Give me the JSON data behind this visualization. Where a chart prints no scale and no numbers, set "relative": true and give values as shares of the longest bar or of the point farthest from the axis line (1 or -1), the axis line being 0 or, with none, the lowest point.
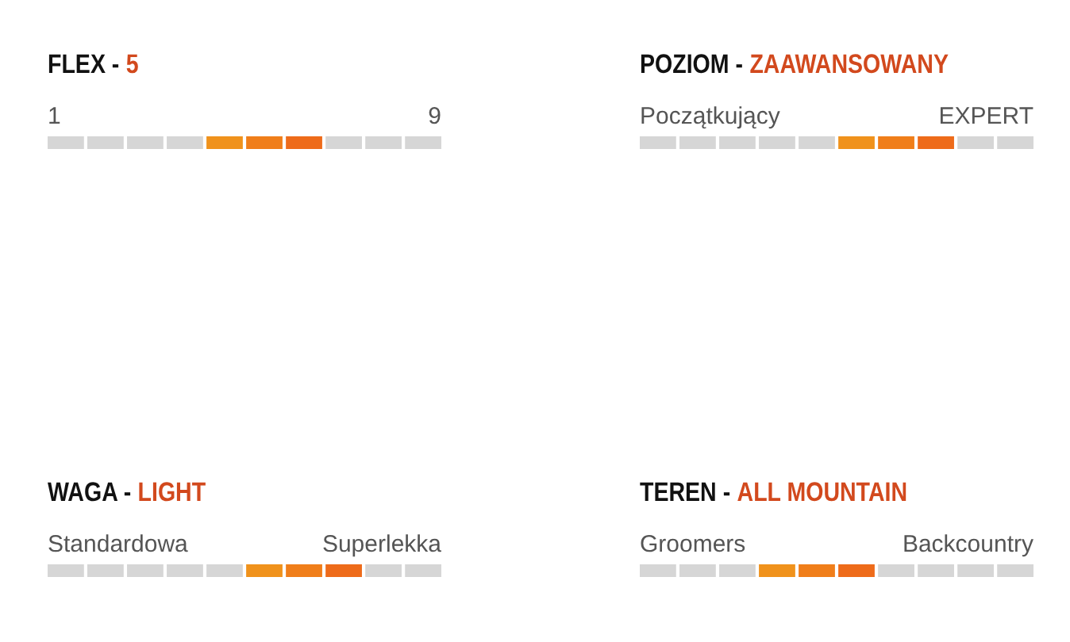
{
  "chart_data": [
    {
      "type": "bar",
      "title": "FLEX -",
      "subtitle": "5",
      "annotations": [
        "1",
        "9"
      ],
      "relative": true,
      "categories": [
        null,
        null,
        null,
        null,
        null,
        null,
        null,
        null,
        null,
        null
      ],
      "values": [
        1,
        1,
        1,
        1,
        1,
        1,
        1,
        1,
        1,
        1
      ],
      "colors": [
        "#d6d6d6",
        "#d6d6d6",
        "#d6d6d6",
        "#d6d6d6",
        "#f0921c",
        "#f07e1a",
        "#ee6b1a",
        "#d6d6d6",
        "#d6d6d6",
        "#d6d6d6"
      ]
    },
    {
      "type": "bar",
      "title": "POZIOM -",
      "subtitle": "ZAAWANSOWANY",
      "annotations": [
        "Początkujący",
        "EXPERT"
      ],
      "relative": true,
      "categories": [
        null,
        null,
        null,
        null,
        null,
        null,
        null,
        null,
        null,
        null
      ],
      "values": [
        1,
        1,
        1,
        1,
        1,
        1,
        1,
        1,
        1,
        1
      ],
      "colors": [
        "#d6d6d6",
        "#d6d6d6",
        "#d6d6d6",
        "#d6d6d6",
        "#d6d6d6",
        "#f0921c",
        "#f07e1a",
        "#ee6b1a",
        "#d6d6d6",
        "#d6d6d6"
      ]
    },
    {
      "type": "bar",
      "title": "WAGA -",
      "subtitle": "LIGHT",
      "annotations": [
        "Standardowa",
        "Superlekka"
      ],
      "relative": true,
      "categories": [
        null,
        null,
        null,
        null,
        null,
        null,
        null,
        null,
        null,
        null
      ],
      "values": [
        1,
        1,
        1,
        1,
        1,
        1,
        1,
        1,
        1,
        1
      ],
      "colors": [
        "#d6d6d6",
        "#d6d6d6",
        "#d6d6d6",
        "#d6d6d6",
        "#d6d6d6",
        "#f0921c",
        "#f07e1a",
        "#ee6b1a",
        "#d6d6d6",
        "#d6d6d6"
      ]
    },
    {
      "type": "bar",
      "title": "TEREN -",
      "subtitle": "ALL MOUNTAIN",
      "annotations": [
        "Groomers",
        "Backcountry"
      ],
      "relative": true,
      "categories": [
        null,
        null,
        null,
        null,
        null,
        null,
        null,
        null,
        null,
        null
      ],
      "values": [
        1,
        1,
        1,
        1,
        1,
        1,
        1,
        1,
        1,
        1
      ],
      "colors": [
        "#d6d6d6",
        "#d6d6d6",
        "#d6d6d6",
        "#f0921c",
        "#f07e1a",
        "#ee6b1a",
        "#d6d6d6",
        "#d6d6d6",
        "#d6d6d6",
        "#d6d6d6"
      ]
    }
  ]
}
